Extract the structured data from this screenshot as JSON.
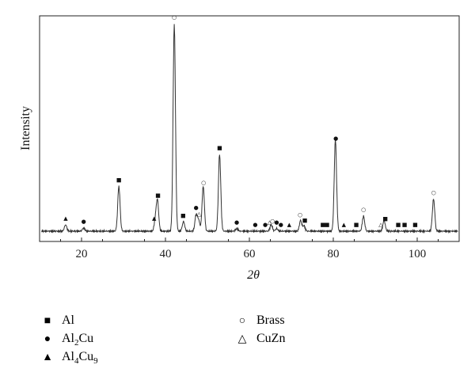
{
  "chart_data": {
    "type": "line",
    "xlabel": "2θ",
    "ylabel": "Intensity",
    "xlim": [
      10,
      110
    ],
    "xticks": [
      20,
      40,
      60,
      80,
      100
    ],
    "peaks": [
      {
        "x": 16.2,
        "h": 0.03
      },
      {
        "x": 20.5,
        "h": 0.015
      },
      {
        "x": 28.9,
        "h": 0.21
      },
      {
        "x": 37.6,
        "h": 0.05
      },
      {
        "x": 38.1,
        "h": 0.14
      },
      {
        "x": 42.1,
        "h": 0.97
      },
      {
        "x": 44.3,
        "h": 0.045
      },
      {
        "x": 47.3,
        "h": 0.075
      },
      {
        "x": 47.9,
        "h": 0.05
      },
      {
        "x": 49.0,
        "h": 0.21
      },
      {
        "x": 52.9,
        "h": 0.36
      },
      {
        "x": 57.0,
        "h": 0.012
      },
      {
        "x": 65.2,
        "h": 0.03
      },
      {
        "x": 66.5,
        "h": 0.012
      },
      {
        "x": 72.2,
        "h": 0.05
      },
      {
        "x": 73.0,
        "h": 0.025
      },
      {
        "x": 80.5,
        "h": 0.43
      },
      {
        "x": 87.2,
        "h": 0.07
      },
      {
        "x": 92.1,
        "h": 0.05
      },
      {
        "x": 103.9,
        "h": 0.15
      }
    ],
    "markers": [
      {
        "x": 16.2,
        "phase": "Al4Cu9"
      },
      {
        "x": 20.5,
        "phase": "Al2Cu"
      },
      {
        "x": 28.9,
        "phase": "Al"
      },
      {
        "x": 37.3,
        "phase": "Al4Cu9"
      },
      {
        "x": 38.2,
        "phase": "Al"
      },
      {
        "x": 42.1,
        "phase": "Brass"
      },
      {
        "x": 44.2,
        "phase": "Al"
      },
      {
        "x": 47.3,
        "phase": "Al2Cu"
      },
      {
        "x": 48.0,
        "phase": "CuZn"
      },
      {
        "x": 49.1,
        "phase": "Brass"
      },
      {
        "x": 52.9,
        "phase": "Al"
      },
      {
        "x": 57.0,
        "phase": "Al2Cu"
      },
      {
        "x": 61.4,
        "phase": "Al2Cu"
      },
      {
        "x": 63.8,
        "phase": "Al2Cu"
      },
      {
        "x": 64.8,
        "phase": "CuZn"
      },
      {
        "x": 65.5,
        "phase": "Brass"
      },
      {
        "x": 66.5,
        "phase": "Al2Cu"
      },
      {
        "x": 67.5,
        "phase": "Al2Cu"
      },
      {
        "x": 69.5,
        "phase": "Al4Cu9"
      },
      {
        "x": 72.1,
        "phase": "Brass"
      },
      {
        "x": 73.2,
        "phase": "Al"
      },
      {
        "x": 77.5,
        "phase": "Al"
      },
      {
        "x": 78.5,
        "phase": "Al"
      },
      {
        "x": 80.6,
        "phase": "Al2Cu"
      },
      {
        "x": 82.5,
        "phase": "Al4Cu9"
      },
      {
        "x": 85.5,
        "phase": "Al"
      },
      {
        "x": 87.2,
        "phase": "Brass"
      },
      {
        "x": 91.3,
        "phase": "CuZn"
      },
      {
        "x": 92.4,
        "phase": "Al"
      },
      {
        "x": 95.5,
        "phase": "Al"
      },
      {
        "x": 97.0,
        "phase": "Al"
      },
      {
        "x": 99.5,
        "phase": "Al"
      },
      {
        "x": 103.9,
        "phase": "Brass"
      }
    ],
    "legend": [
      {
        "phase": "Al",
        "symbol": "■",
        "base": "Al",
        "parts": []
      },
      {
        "phase": "Brass",
        "symbol": "○",
        "base": "Brass",
        "parts": []
      },
      {
        "phase": "Al2Cu",
        "symbol": "●",
        "base": "Al",
        "parts": [
          {
            "sub": "2"
          },
          {
            "text": "Cu"
          }
        ]
      },
      {
        "phase": "CuZn",
        "symbol": "△",
        "base": "CuZn",
        "parts": []
      },
      {
        "phase": "Al4Cu9",
        "symbol": "▲",
        "base": "Al",
        "parts": [
          {
            "sub": "4"
          },
          {
            "text": "Cu"
          },
          {
            "sub": "9"
          }
        ]
      }
    ],
    "colors": {
      "line": "#333333",
      "axis": "#222222"
    }
  }
}
